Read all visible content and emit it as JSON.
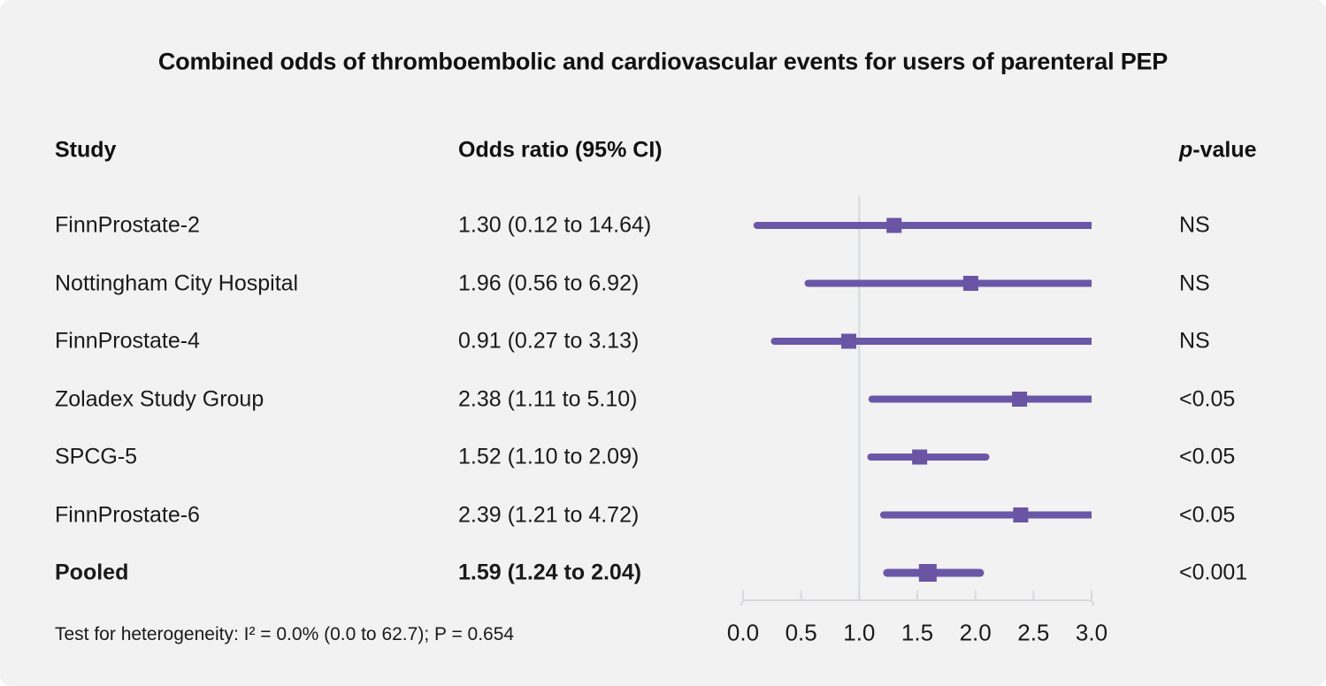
{
  "title": "Combined odds of thromboembolic and cardiovascular events for users of parenteral PEP",
  "headers": {
    "study": "Study",
    "odds_ratio": "Odds ratio (95% CI)",
    "p_italic": "p",
    "p_rest": "-value"
  },
  "chart_data": {
    "type": "forest",
    "title": "Combined odds of thromboembolic and cardiovascular events for users of parenteral PEP",
    "xlabel": "",
    "xlim": [
      0.0,
      3.0
    ],
    "x_ticks": [
      "0.0",
      "0.5",
      "1.0",
      "1.5",
      "2.0",
      "2.5",
      "3.0"
    ],
    "reference_line": 1.0,
    "legend": false,
    "grid": false,
    "rows": [
      {
        "study": "FinnProstate-2",
        "or": 1.3,
        "ci_low": 0.12,
        "ci_high": 14.64,
        "label": "1.30 (0.12 to 14.64)",
        "p": "NS",
        "pooled": false
      },
      {
        "study": "Nottingham City Hospital",
        "or": 1.96,
        "ci_low": 0.56,
        "ci_high": 6.92,
        "label": "1.96 (0.56 to 6.92)",
        "p": "NS",
        "pooled": false
      },
      {
        "study": "FinnProstate-4",
        "or": 0.91,
        "ci_low": 0.27,
        "ci_high": 3.13,
        "label": "0.91 (0.27 to 3.13)",
        "p": "NS",
        "pooled": false
      },
      {
        "study": "Zoladex Study Group",
        "or": 2.38,
        "ci_low": 1.11,
        "ci_high": 5.1,
        "label": "2.38 (1.11 to 5.10)",
        "p": "<0.05",
        "pooled": false
      },
      {
        "study": "SPCG-5",
        "or": 1.52,
        "ci_low": 1.1,
        "ci_high": 2.09,
        "label": "1.52 (1.10 to 2.09)",
        "p": "<0.05",
        "pooled": false
      },
      {
        "study": "FinnProstate-6",
        "or": 2.39,
        "ci_low": 1.21,
        "ci_high": 4.72,
        "label": "2.39 (1.21 to 4.72)",
        "p": "<0.05",
        "pooled": false
      },
      {
        "study": "Pooled",
        "or": 1.59,
        "ci_low": 1.24,
        "ci_high": 2.04,
        "label": "1.59 (1.24 to 2.04)",
        "p": "<0.001",
        "pooled": true
      }
    ],
    "footnote": "Test for heterogeneity: I² = 0.0% (0.0 to 62.7); P = 0.654"
  },
  "colors": {
    "ci_line": "#6b57a7",
    "marker": "#6a54a3",
    "axis_line": "#d6dade",
    "reference_line": "#d9dde1",
    "background": "#f2f2f2",
    "text": "#1a1a1a"
  }
}
